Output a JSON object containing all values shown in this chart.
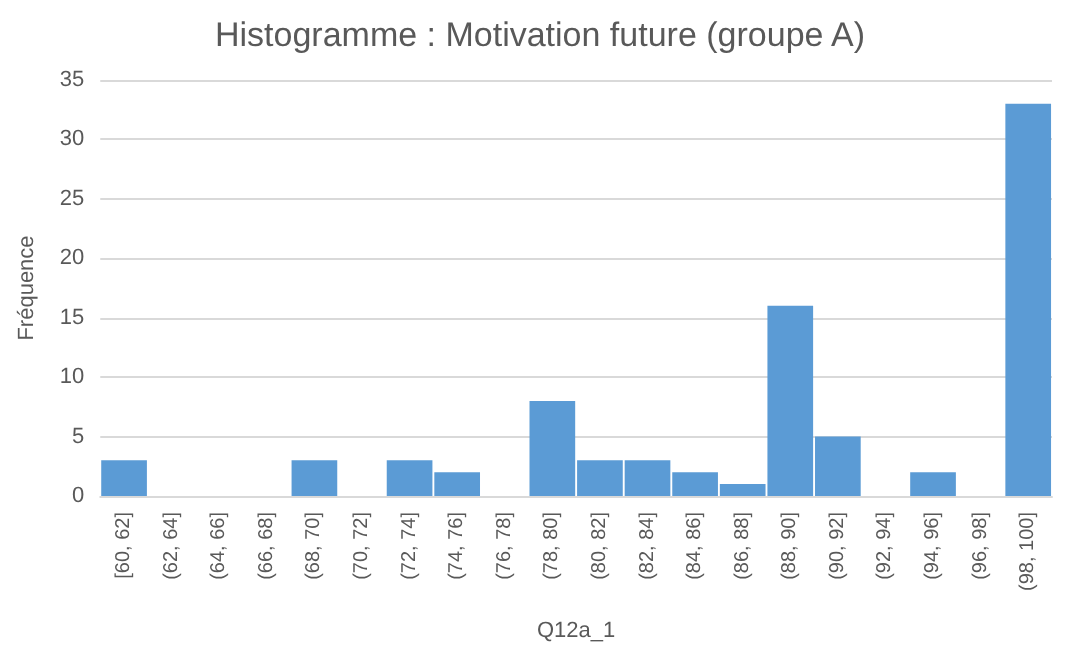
{
  "chart_data": {
    "type": "bar",
    "title": "Histogramme : Motivation future (groupe A)",
    "xlabel": "Q12a_1",
    "ylabel": "Fréquence",
    "categories": [
      "[60, 62]",
      "(62, 64]",
      "(64, 66]",
      "(66, 68]",
      "(68, 70]",
      "(70, 72]",
      "(72, 74]",
      "(74, 76]",
      "(76, 78]",
      "(78, 80]",
      "(80, 82]",
      "(82, 84]",
      "(84, 86]",
      "(86, 88]",
      "(88, 90]",
      "(90, 92]",
      "(92, 94]",
      "(94, 96]",
      "(96, 98]",
      "(98, 100]"
    ],
    "values": [
      3,
      0,
      0,
      0,
      3,
      0,
      3,
      2,
      0,
      8,
      3,
      3,
      2,
      1,
      16,
      5,
      0,
      2,
      0,
      33
    ],
    "color": "#5b9bd5",
    "ylim": [
      0,
      35
    ],
    "yticks": [
      0,
      5,
      10,
      15,
      20,
      25,
      30,
      35
    ],
    "grid": "y"
  }
}
